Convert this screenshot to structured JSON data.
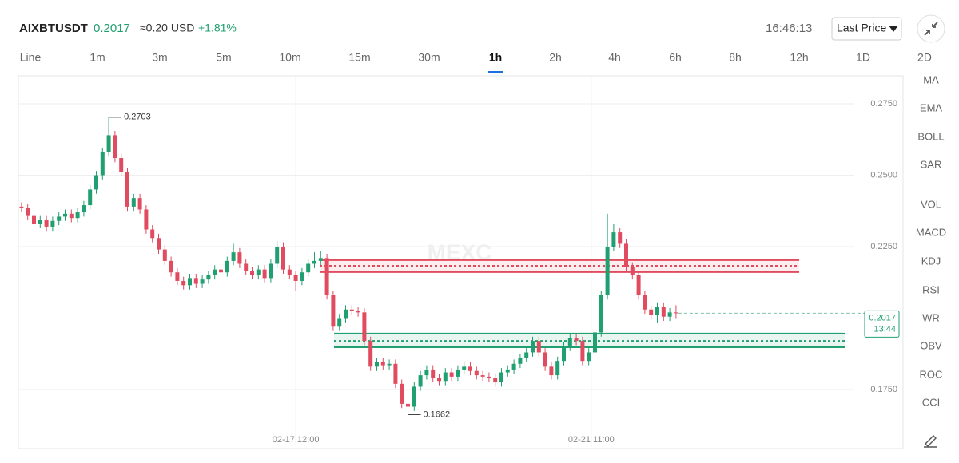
{
  "header": {
    "symbol": "AIXBTUSDT",
    "price": "0.2017",
    "usd": "≈0.20 USD",
    "change": "+1.81%",
    "clock": "16:46:13",
    "price_type": "Last Price"
  },
  "tabs": [
    "Line",
    "1m",
    "3m",
    "5m",
    "10m",
    "15m",
    "30m",
    "1h",
    "2h",
    "4h",
    "6h",
    "8h",
    "12h",
    "1D",
    "2D"
  ],
  "active_tab": "1h",
  "indicators": [
    "MA",
    "EMA",
    "BOLL",
    "SAR",
    "VOL",
    "MACD",
    "KDJ",
    "RSI",
    "WR",
    "OBV",
    "ROC",
    "CCI"
  ],
  "chart_data": {
    "type": "candlestick",
    "watermark": "MEXC",
    "up_color": "#20a070",
    "down_color": "#e04b5f",
    "ylim": [
      0.155,
      0.285
    ],
    "yticks": [
      {
        "value": 0.175,
        "label": "0.1750"
      },
      {
        "value": 0.225,
        "label": "0.2250"
      },
      {
        "value": 0.25,
        "label": "0.2500"
      },
      {
        "value": 0.275,
        "label": "0.2750"
      }
    ],
    "xlim": [
      -0.5,
      133.5
    ],
    "xticks": [
      {
        "value": 44,
        "label": "02-17 12:00"
      },
      {
        "value": 91.4,
        "label": "02-21 11:00"
      }
    ],
    "grid": true,
    "countdown": "13:44",
    "zones": [
      {
        "color": "#e04b5f",
        "top": 0.2203,
        "mid": 0.2183,
        "bottom": 0.2161
      },
      {
        "color": "#20a070",
        "top": 0.1946,
        "mid": 0.192,
        "bottom": 0.1898
      }
    ],
    "candles": [
      [
        0.239,
        0.2405,
        0.237,
        0.2385
      ],
      [
        0.2385,
        0.24,
        0.2345,
        0.236
      ],
      [
        0.236,
        0.2375,
        0.2315,
        0.233
      ],
      [
        0.233,
        0.236,
        0.2315,
        0.2345
      ],
      [
        0.2345,
        0.236,
        0.2305,
        0.232
      ],
      [
        0.232,
        0.2355,
        0.2305,
        0.234
      ],
      [
        0.234,
        0.237,
        0.2325,
        0.2355
      ],
      [
        0.2355,
        0.238,
        0.234,
        0.2365
      ],
      [
        0.2365,
        0.238,
        0.2335,
        0.235
      ],
      [
        0.235,
        0.2385,
        0.2335,
        0.237
      ],
      [
        0.237,
        0.241,
        0.2355,
        0.2395
      ],
      [
        0.2395,
        0.2465,
        0.238,
        0.245
      ],
      [
        0.245,
        0.2515,
        0.2435,
        0.25
      ],
      [
        0.25,
        0.2595,
        0.2485,
        0.258
      ],
      [
        0.258,
        0.2703,
        0.2565,
        0.264
      ],
      [
        0.264,
        0.2655,
        0.2545,
        0.256
      ],
      [
        0.256,
        0.2575,
        0.2495,
        0.251
      ],
      [
        0.251,
        0.2525,
        0.2375,
        0.239
      ],
      [
        0.239,
        0.2435,
        0.2375,
        0.242
      ],
      [
        0.242,
        0.2435,
        0.2365,
        0.238
      ],
      [
        0.238,
        0.2395,
        0.2295,
        0.231
      ],
      [
        0.231,
        0.2325,
        0.2265,
        0.228
      ],
      [
        0.228,
        0.2295,
        0.2225,
        0.224
      ],
      [
        0.224,
        0.2255,
        0.2185,
        0.22
      ],
      [
        0.22,
        0.2215,
        0.2145,
        0.216
      ],
      [
        0.216,
        0.2175,
        0.2115,
        0.213
      ],
      [
        0.213,
        0.2145,
        0.21,
        0.2115
      ],
      [
        0.2115,
        0.2155,
        0.21,
        0.214
      ],
      [
        0.214,
        0.2155,
        0.2105,
        0.212
      ],
      [
        0.212,
        0.215,
        0.2105,
        0.2135
      ],
      [
        0.2135,
        0.2165,
        0.212,
        0.215
      ],
      [
        0.215,
        0.2185,
        0.2135,
        0.217
      ],
      [
        0.217,
        0.2185,
        0.2145,
        0.216
      ],
      [
        0.216,
        0.2215,
        0.2145,
        0.22
      ],
      [
        0.22,
        0.226,
        0.2185,
        0.223
      ],
      [
        0.223,
        0.2245,
        0.2175,
        0.219
      ],
      [
        0.219,
        0.2205,
        0.215,
        0.2165
      ],
      [
        0.2165,
        0.218,
        0.2135,
        0.215
      ],
      [
        0.215,
        0.2185,
        0.2135,
        0.217
      ],
      [
        0.217,
        0.2185,
        0.2125,
        0.214
      ],
      [
        0.214,
        0.2205,
        0.2125,
        0.219
      ],
      [
        0.219,
        0.227,
        0.2175,
        0.225
      ],
      [
        0.225,
        0.2265,
        0.2155,
        0.217
      ],
      [
        0.217,
        0.2185,
        0.2135,
        0.215
      ],
      [
        0.215,
        0.2165,
        0.2095,
        0.213
      ],
      [
        0.213,
        0.2175,
        0.2115,
        0.216
      ],
      [
        0.216,
        0.2205,
        0.2145,
        0.219
      ],
      [
        0.219,
        0.223,
        0.2175,
        0.22
      ],
      [
        0.22,
        0.2235,
        0.2185,
        0.221
      ],
      [
        0.221,
        0.2225,
        0.2065,
        0.208
      ],
      [
        0.208,
        0.2095,
        0.1955,
        0.197
      ],
      [
        0.197,
        0.2015,
        0.1955,
        0.2
      ],
      [
        0.2,
        0.2045,
        0.1985,
        0.203
      ],
      [
        0.203,
        0.2045,
        0.201,
        0.2025
      ],
      [
        0.2025,
        0.204,
        0.2005,
        0.202
      ],
      [
        0.202,
        0.2035,
        0.1905,
        0.192
      ],
      [
        0.192,
        0.1935,
        0.1815,
        0.183
      ],
      [
        0.183,
        0.186,
        0.1815,
        0.1845
      ],
      [
        0.1845,
        0.186,
        0.182,
        0.1835
      ],
      [
        0.1835,
        0.1855,
        0.182,
        0.184
      ],
      [
        0.184,
        0.1855,
        0.1755,
        0.177
      ],
      [
        0.177,
        0.1785,
        0.1685,
        0.17
      ],
      [
        0.17,
        0.1715,
        0.1662,
        0.169
      ],
      [
        0.169,
        0.1775,
        0.1675,
        0.176
      ],
      [
        0.176,
        0.1815,
        0.1745,
        0.18
      ],
      [
        0.18,
        0.1835,
        0.1785,
        0.182
      ],
      [
        0.182,
        0.1835,
        0.1775,
        0.179
      ],
      [
        0.179,
        0.1805,
        0.1765,
        0.178
      ],
      [
        0.178,
        0.1825,
        0.1765,
        0.181
      ],
      [
        0.181,
        0.1825,
        0.178,
        0.1795
      ],
      [
        0.1795,
        0.1835,
        0.178,
        0.182
      ],
      [
        0.182,
        0.1845,
        0.1805,
        0.183
      ],
      [
        0.183,
        0.1845,
        0.18,
        0.1815
      ],
      [
        0.1815,
        0.183,
        0.1785,
        0.18
      ],
      [
        0.18,
        0.1815,
        0.178,
        0.1795
      ],
      [
        0.1795,
        0.181,
        0.1775,
        0.179
      ],
      [
        0.179,
        0.1805,
        0.176,
        0.1775
      ],
      [
        0.1775,
        0.1825,
        0.176,
        0.181
      ],
      [
        0.181,
        0.1835,
        0.1795,
        0.182
      ],
      [
        0.182,
        0.1855,
        0.1805,
        0.184
      ],
      [
        0.184,
        0.1875,
        0.1825,
        0.186
      ],
      [
        0.186,
        0.1895,
        0.1845,
        0.188
      ],
      [
        0.188,
        0.1935,
        0.1865,
        0.192
      ],
      [
        0.192,
        0.1935,
        0.1865,
        0.188
      ],
      [
        0.188,
        0.1895,
        0.1815,
        0.183
      ],
      [
        0.183,
        0.1845,
        0.1785,
        0.18
      ],
      [
        0.18,
        0.1865,
        0.1785,
        0.185
      ],
      [
        0.185,
        0.1915,
        0.1835,
        0.19
      ],
      [
        0.19,
        0.1945,
        0.1885,
        0.193
      ],
      [
        0.193,
        0.1945,
        0.1905,
        0.192
      ],
      [
        0.192,
        0.1935,
        0.1835,
        0.185
      ],
      [
        0.185,
        0.1895,
        0.1835,
        0.188
      ],
      [
        0.188,
        0.1965,
        0.1865,
        0.195
      ],
      [
        0.195,
        0.2095,
        0.1935,
        0.208
      ],
      [
        0.208,
        0.2365,
        0.2065,
        0.225
      ],
      [
        0.225,
        0.233,
        0.2235,
        0.23
      ],
      [
        0.23,
        0.2315,
        0.2245,
        0.226
      ],
      [
        0.226,
        0.2275,
        0.2165,
        0.218
      ],
      [
        0.218,
        0.2195,
        0.2135,
        0.215
      ],
      [
        0.215,
        0.2165,
        0.2065,
        0.208
      ],
      [
        0.208,
        0.2095,
        0.2015,
        0.203
      ],
      [
        0.203,
        0.2045,
        0.1995,
        0.201
      ],
      [
        0.201,
        0.2055,
        0.1985,
        0.204
      ],
      [
        0.204,
        0.2055,
        0.199,
        0.2005
      ],
      [
        0.2005,
        0.2035,
        0.199,
        0.202
      ],
      [
        0.202,
        0.2045,
        0.2,
        0.2017
      ]
    ]
  }
}
